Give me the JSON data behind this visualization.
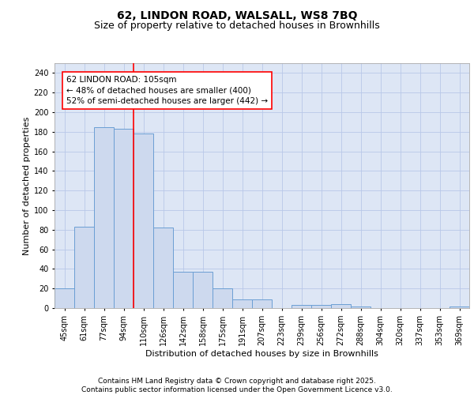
{
  "title_line1": "62, LINDON ROAD, WALSALL, WS8 7BQ",
  "title_line2": "Size of property relative to detached houses in Brownhills",
  "xlabel": "Distribution of detached houses by size in Brownhills",
  "ylabel": "Number of detached properties",
  "bar_labels": [
    "45sqm",
    "61sqm",
    "77sqm",
    "94sqm",
    "110sqm",
    "126sqm",
    "142sqm",
    "158sqm",
    "175sqm",
    "191sqm",
    "207sqm",
    "223sqm",
    "239sqm",
    "256sqm",
    "272sqm",
    "288sqm",
    "304sqm",
    "320sqm",
    "337sqm",
    "353sqm",
    "369sqm"
  ],
  "bar_values": [
    20,
    83,
    185,
    183,
    178,
    82,
    37,
    37,
    20,
    9,
    9,
    0,
    3,
    3,
    4,
    2,
    0,
    0,
    0,
    0,
    2
  ],
  "bar_color": "#cdd9ee",
  "bar_edgecolor": "#6b9fd4",
  "grid_color": "#b8c8e8",
  "background_color": "#dde6f5",
  "red_line_index": 4,
  "annotation_text": "62 LINDON ROAD: 105sqm\n← 48% of detached houses are smaller (400)\n52% of semi-detached houses are larger (442) →",
  "ylim": [
    0,
    250
  ],
  "yticks": [
    0,
    20,
    40,
    60,
    80,
    100,
    120,
    140,
    160,
    180,
    200,
    220,
    240
  ],
  "footer_text": "Contains HM Land Registry data © Crown copyright and database right 2025.\nContains public sector information licensed under the Open Government Licence v3.0.",
  "title_fontsize": 10,
  "subtitle_fontsize": 9,
  "axis_label_fontsize": 8,
  "tick_fontsize": 7,
  "annotation_fontsize": 7.5,
  "footer_fontsize": 6.5
}
